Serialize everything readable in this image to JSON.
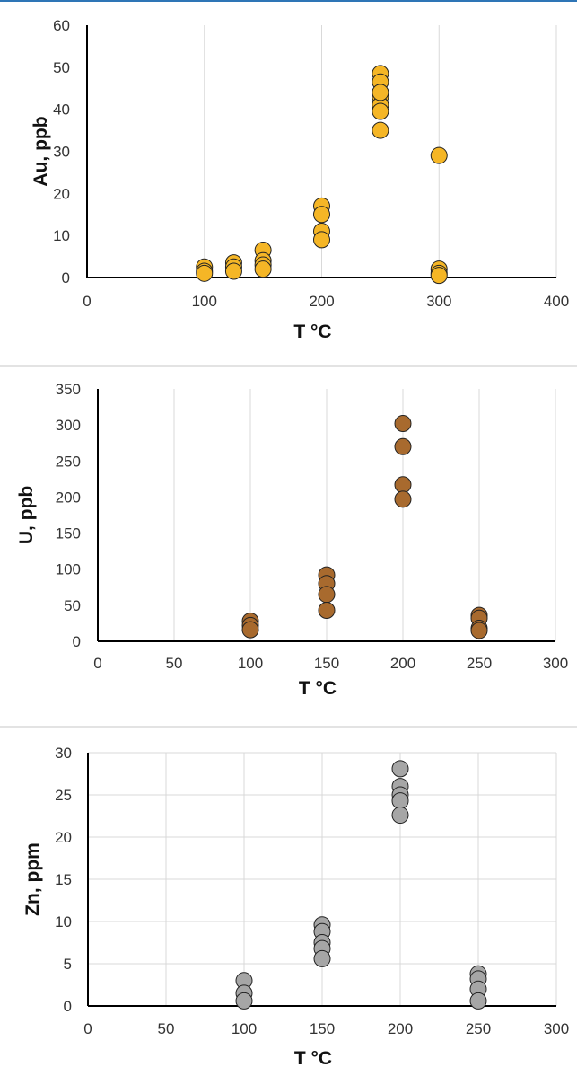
{
  "chart_data": [
    {
      "type": "scatter",
      "xlabel": "T °C",
      "ylabel": "Au, ppb",
      "xlim": [
        0,
        400
      ],
      "ylim": [
        0,
        60
      ],
      "xticks": [
        0,
        100,
        200,
        300,
        400
      ],
      "yticks": [
        0,
        10,
        20,
        30,
        40,
        50,
        60
      ],
      "grid": "vertical",
      "color": "#f5b626",
      "x": [
        100,
        100,
        100,
        125,
        125,
        125,
        150,
        150,
        150,
        150,
        200,
        200,
        200,
        200,
        250,
        250,
        250,
        250,
        250,
        250,
        250,
        250,
        300,
        300,
        300,
        300
      ],
      "y": [
        2.5,
        1.5,
        1.0,
        3.5,
        2.5,
        1.5,
        6.5,
        4.0,
        3.0,
        2.0,
        17,
        15,
        11,
        9,
        48.5,
        46.5,
        44,
        43,
        41,
        39.5,
        35,
        44,
        29,
        2,
        1,
        0.5
      ]
    },
    {
      "type": "scatter",
      "xlabel": "T °C",
      "ylabel": "U, ppb",
      "xlim": [
        0,
        300
      ],
      "ylim": [
        0,
        350
      ],
      "xticks": [
        0,
        50,
        100,
        150,
        200,
        250,
        300
      ],
      "yticks": [
        0,
        50,
        100,
        150,
        200,
        250,
        300,
        350
      ],
      "grid": "vertical",
      "color": "#a86a2e",
      "x": [
        100,
        100,
        100,
        150,
        150,
        150,
        150,
        200,
        200,
        200,
        200,
        250,
        250,
        250,
        250
      ],
      "y": [
        28,
        22,
        16,
        92,
        80,
        65,
        43,
        302,
        270,
        217,
        197,
        36,
        32,
        18,
        15
      ]
    },
    {
      "type": "scatter",
      "xlabel": "T °C",
      "ylabel": "Zn, ppm",
      "xlim": [
        0,
        300
      ],
      "ylim": [
        0,
        30
      ],
      "xticks": [
        0,
        50,
        100,
        150,
        200,
        250,
        300
      ],
      "yticks": [
        0,
        5,
        10,
        15,
        20,
        25,
        30
      ],
      "grid": "both",
      "color": "#a6a6a6",
      "x": [
        100,
        100,
        100,
        150,
        150,
        150,
        150,
        150,
        200,
        200,
        200,
        200,
        200,
        250,
        250,
        250,
        250
      ],
      "y": [
        3.0,
        1.5,
        0.6,
        9.6,
        8.8,
        7.5,
        6.8,
        5.6,
        28.1,
        26.0,
        25.0,
        24.3,
        22.6,
        3.8,
        3.2,
        2.0,
        0.6
      ]
    }
  ]
}
